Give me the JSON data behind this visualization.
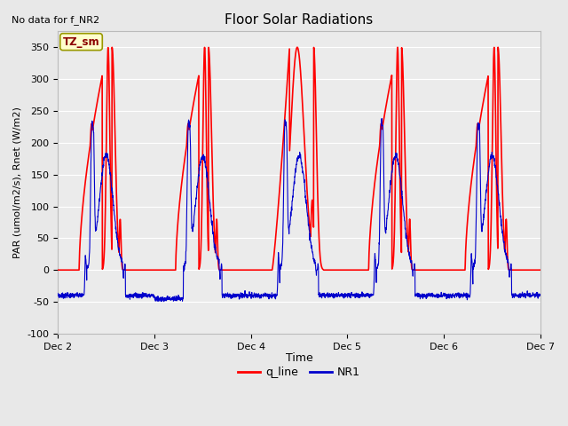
{
  "title": "Floor Solar Radiations",
  "top_left_text": "No data for f_NR2",
  "ylabel": "PAR (umol/m2/s), Rnet (W/m2)",
  "xlabel": "Time",
  "ylim": [
    -100,
    375
  ],
  "yticks": [
    -100,
    -50,
    0,
    50,
    100,
    150,
    200,
    250,
    300,
    350
  ],
  "xtick_labels": [
    "Dec 2",
    "Dec 3",
    "Dec 4",
    "Dec 5",
    "Dec 6",
    "Dec 7"
  ],
  "legend_labels": [
    "q_line",
    "NR1"
  ],
  "q_line_color": "#ff0000",
  "nr1_color": "#0000cc",
  "fig_bg_color": "#e8e8e8",
  "plot_bg_color": "#ebebeb",
  "grid_color": "#ffffff",
  "annotation_text": "TZ_sm",
  "annotation_bg": "#ffffcc",
  "annotation_border": "#999900",
  "title_fontsize": 11,
  "label_fontsize": 8,
  "tick_fontsize": 8,
  "legend_fontsize": 9,
  "n_days": 5,
  "points_per_day": 480,
  "day_start": 2
}
